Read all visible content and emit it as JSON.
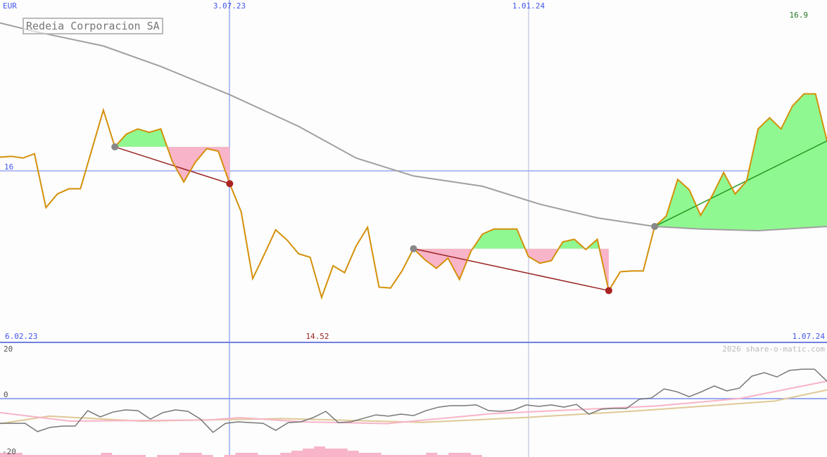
{
  "title": "Redeia Corporacion SA",
  "currency": "EUR",
  "watermark": "2026 share-o-matic.com",
  "colors": {
    "price": "#d4900a",
    "ma": "#a0a0a0",
    "grid": "#9aa8f0",
    "up": "#90f890",
    "down": "#f8b4c8",
    "down_line": "#992222",
    "up_line": "#229922",
    "osc": "#777777",
    "osc_pink": "#f8b4c8",
    "osc_tan": "#e0c898"
  },
  "chart_data": {
    "type": "line",
    "title": "Redeia Corporacion SA",
    "ylabel": "EUR",
    "x_ticks": [
      "6.02.23",
      "3.07.23",
      "1.01.24",
      "1.07.24"
    ],
    "y_ticks": [
      "16"
    ],
    "max_label": "16.9",
    "min_label": "14.52",
    "price": [
      16.16,
      16.17,
      16.15,
      16.2,
      15.57,
      15.73,
      15.79,
      15.79,
      16.25,
      16.71,
      16.28,
      16.43,
      16.49,
      16.45,
      16.49,
      16.11,
      15.87,
      16.1,
      16.26,
      16.23,
      15.85,
      15.52,
      14.74,
      15.02,
      15.31,
      15.19,
      15.03,
      14.99,
      14.52,
      14.89,
      14.81,
      15.12,
      15.34,
      14.64,
      14.63,
      14.83,
      15.09,
      14.96,
      14.86,
      14.98,
      14.73,
      15.06,
      15.26,
      15.32,
      15.32,
      15.32,
      15.0,
      14.92,
      14.95,
      15.17,
      15.2,
      15.08,
      15.2,
      14.6,
      14.82,
      14.83,
      14.83,
      15.35,
      15.47,
      15.9,
      15.78,
      15.48,
      15.71,
      15.98,
      15.73,
      15.88,
      16.49,
      16.62,
      16.49,
      16.76,
      16.9,
      16.9,
      16.35
    ],
    "moving_average": [
      [
        0,
        17.73
      ],
      [
        3,
        17.63
      ],
      [
        9,
        17.46
      ],
      [
        14,
        17.22
      ],
      [
        20,
        16.89
      ],
      [
        26,
        16.52
      ],
      [
        31,
        16.15
      ],
      [
        36,
        15.94
      ],
      [
        42,
        15.82
      ],
      [
        47,
        15.61
      ],
      [
        52,
        15.45
      ],
      [
        57,
        15.35
      ],
      [
        61,
        15.32
      ],
      [
        66,
        15.3
      ],
      [
        72,
        15.35
      ]
    ],
    "signals": [
      {
        "type": "down",
        "from": 10,
        "to": 20
      },
      {
        "type": "down",
        "from": 36,
        "to": 53
      },
      {
        "type": "up",
        "from": 57,
        "to": 72
      }
    ],
    "indicator": {
      "y_ticks": [
        "20",
        "0",
        "-20"
      ],
      "ylim": [
        -20,
        20
      ],
      "oscillator": [
        -9.9,
        -9.9,
        -9.9,
        -13.2,
        -11.5,
        -11,
        -11,
        -4.8,
        -7.3,
        -5.4,
        -4.5,
        -4.8,
        -8.2,
        -5.6,
        -4.5,
        -5.1,
        -8.2,
        -13.5,
        -9.9,
        -9.3,
        -9.6,
        -9.9,
        -12.7,
        -9.6,
        -9.3,
        -7.6,
        -5.1,
        -9.6,
        -9.3,
        -7.9,
        -6.5,
        -7,
        -6.2,
        -6.8,
        -4.8,
        -3.4,
        -2.8,
        -2.8,
        -2.5,
        -4.8,
        -5.1,
        -4.5,
        -2.5,
        -3.1,
        -2.5,
        -3.4,
        -2.3,
        -6.2,
        -4.2,
        -3.9,
        -3.9,
        -0.3,
        0.3,
        3.9,
        2.8,
        0.8,
        2.8,
        5.1,
        3.1,
        4.2,
        9,
        10.4,
        8.7,
        11.3,
        11.8,
        11.8,
        7
      ],
      "signal_pink": [
        [
          0,
          -5.6
        ],
        [
          100,
          -9
        ],
        [
          300,
          -8.5
        ],
        [
          340,
          -7.6
        ],
        [
          430,
          -9.3
        ],
        [
          550,
          -10
        ],
        [
          700,
          -6
        ],
        [
          850,
          -4
        ],
        [
          930,
          -3
        ],
        [
          1050,
          0
        ],
        [
          1175,
          7
        ]
      ],
      "signal_tan": [
        [
          0,
          -10
        ],
        [
          70,
          -7
        ],
        [
          200,
          -9
        ],
        [
          400,
          -8
        ],
        [
          600,
          -9.5
        ],
        [
          750,
          -7.5
        ],
        [
          900,
          -5
        ],
        [
          1000,
          -3
        ],
        [
          1100,
          -1
        ],
        [
          1175,
          3.5
        ]
      ],
      "volume": [
        2,
        2,
        1,
        1,
        1,
        1,
        1,
        1,
        1,
        2,
        1,
        1,
        1,
        0,
        1,
        1,
        2,
        2,
        1,
        0,
        1,
        2,
        2,
        1,
        1,
        2,
        3,
        4,
        5,
        4,
        4,
        3,
        2,
        2,
        1,
        1,
        1,
        1,
        2,
        1,
        2,
        2,
        1
      ]
    }
  }
}
